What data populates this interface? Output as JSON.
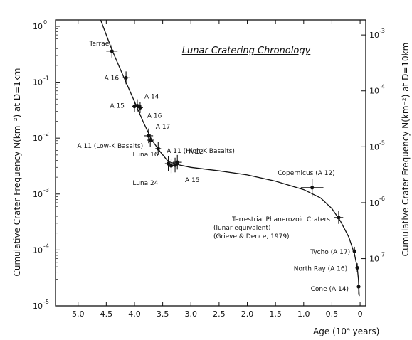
{
  "chart_data": {
    "type": "scatter",
    "title": "Lunar Cratering Chronology",
    "xlabel": "Age (10⁹ years)",
    "ylabel_left": "Cumulative Crater Frequency N(km⁻²) at D=1km",
    "ylabel_right": "Cumulative Crater Frequency N(km⁻²) at D=10km",
    "xlim": [
      5.4,
      -0.1
    ],
    "x_ticks": [
      "5.0",
      "4.5",
      "4.0",
      "3.5",
      "3.0",
      "2.5",
      "2.0",
      "1.5",
      "1.0",
      "0.5",
      "0"
    ],
    "x_tick_values": [
      5.0,
      4.5,
      4.0,
      3.5,
      3.0,
      2.5,
      2.0,
      1.5,
      1.0,
      0.5,
      0.0
    ],
    "y_left_scale": "log",
    "y_left_lim": [
      1e-05,
      1.3
    ],
    "y_left_ticks": [
      {
        "label": "10",
        "exp": "0",
        "value": 1
      },
      {
        "label": "10",
        "exp": "-1",
        "value": 0.1
      },
      {
        "label": "10",
        "exp": "-2",
        "value": 0.01
      },
      {
        "label": "10",
        "exp": "-3",
        "value": 0.001
      },
      {
        "label": "10",
        "exp": "-4",
        "value": 0.0001
      },
      {
        "label": "10",
        "exp": "-5",
        "value": 1e-05
      }
    ],
    "y_right_ticks": [
      {
        "label": "10",
        "exp": "-3",
        "value": 0.7
      },
      {
        "label": "10",
        "exp": "-4",
        "value": 0.07
      },
      {
        "label": "10",
        "exp": "-5",
        "value": 0.007
      },
      {
        "label": "10",
        "exp": "-6",
        "value": 0.0007
      },
      {
        "label": "10",
        "exp": "-7",
        "value": 7e-05
      }
    ],
    "grid": false,
    "points": [
      {
        "label": "Terrae",
        "x": 4.4,
        "y": 0.36,
        "xerr": 0.1,
        "yfactor": 1.3
      },
      {
        "label": "A 16",
        "x": 4.15,
        "y": 0.12,
        "xerr": 0.07,
        "yfactor": 1.3
      },
      {
        "label": "A 14",
        "x": 3.95,
        "y": 0.038,
        "xerr": 0.07,
        "yfactor": 1.3
      },
      {
        "label": "A 15",
        "x": 4.0,
        "y": 0.037,
        "xerr": 0.05,
        "yfactor": 1.25
      },
      {
        "label": "A 16",
        "x": 3.9,
        "y": 0.035,
        "xerr": 0.05,
        "yfactor": 1.25
      },
      {
        "label": "A 17",
        "x": 3.75,
        "y": 0.011,
        "xerr": 0.08,
        "yfactor": 1.35
      },
      {
        "label": "A 11 (Low-K Basalts)",
        "x": 3.72,
        "y": 0.0092,
        "xerr": 0.06,
        "yfactor": 1.3
      },
      {
        "label": "A 11 (High-K Basalts)",
        "x": 3.58,
        "y": 0.0065,
        "xerr": 0.05,
        "yfactor": 1.3
      },
      {
        "label": "Luna 16",
        "x": 3.4,
        "y": 0.0035,
        "xerr": 0.06,
        "yfactor": 1.35
      },
      {
        "label": "A 12",
        "x": 3.24,
        "y": 0.0037,
        "xerr": 0.08,
        "yfactor": 1.35
      },
      {
        "label": "Luna 24",
        "x": 3.35,
        "y": 0.0032,
        "xerr": 0.05,
        "yfactor": 1.35
      },
      {
        "label": "A 15",
        "x": 3.28,
        "y": 0.0033,
        "xerr": 0.05,
        "yfactor": 1.35
      },
      {
        "label": "Copernicus (A 12)",
        "x": 0.85,
        "y": 0.0013,
        "xerr": 0.2,
        "yfactor": 1.45
      },
      {
        "label": "Terrestrial Phanerozoic Craters",
        "x": 0.38,
        "y": 0.00038,
        "xerr": 0.08,
        "yfactor": 1.3
      },
      {
        "label": "Tycho (A 17)",
        "x": 0.1,
        "y": 9.5e-05,
        "xerr": 0.02,
        "yfactor": 1.2
      },
      {
        "label": "North Ray (A 16)",
        "x": 0.05,
        "y": 4.8e-05,
        "xerr": 0.02,
        "yfactor": 1.2
      },
      {
        "label": "Cone (A 14)",
        "x": 0.026,
        "y": 2.2e-05,
        "xerr": 0.02,
        "yfactor": 1.4
      }
    ],
    "curve": [
      [
        4.6,
        1.3
      ],
      [
        4.4,
        0.38
      ],
      [
        4.2,
        0.13
      ],
      [
        4.0,
        0.045
      ],
      [
        3.85,
        0.02
      ],
      [
        3.7,
        0.0095
      ],
      [
        3.55,
        0.0058
      ],
      [
        3.4,
        0.0038
      ],
      [
        3.2,
        0.0033
      ],
      [
        3.0,
        0.003
      ],
      [
        2.5,
        0.0026
      ],
      [
        2.0,
        0.0022
      ],
      [
        1.5,
        0.0017
      ],
      [
        1.0,
        0.0012
      ],
      [
        0.7,
        0.00085
      ],
      [
        0.5,
        0.00055
      ],
      [
        0.35,
        0.00033
      ],
      [
        0.2,
        0.00017
      ],
      [
        0.1,
        8.5e-05
      ],
      [
        0.05,
        4.8e-05
      ],
      [
        0.03,
        3e-05
      ],
      [
        0.015,
        1.5e-05
      ]
    ],
    "annotations": [
      "(lunar equivalent)",
      "(Grieve & Dence, 1979)"
    ]
  }
}
